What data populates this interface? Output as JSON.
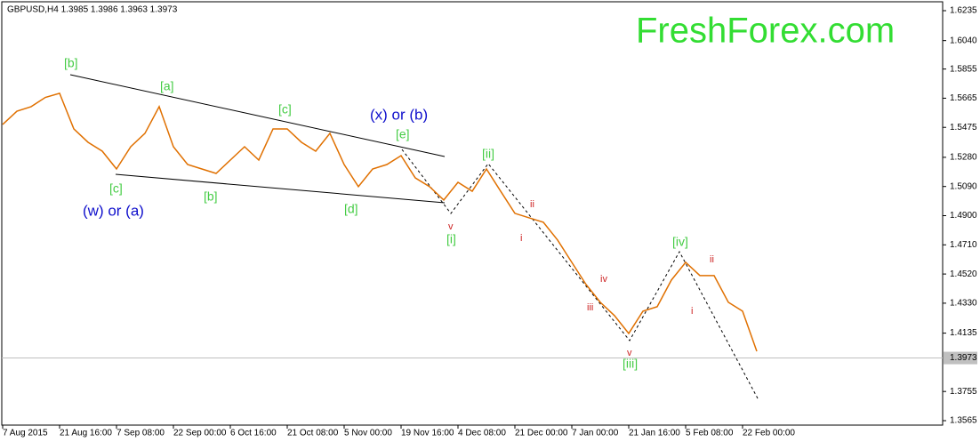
{
  "chart_data": {
    "type": "line",
    "title": "GBPUSD,H4  1.3985 1.3986 1.3963 1.3973",
    "watermark": "FreshForex.com",
    "categories": [
      "7 Aug 2015",
      null,
      null,
      null,
      "21 Aug 16:00",
      null,
      null,
      null,
      "7 Sep 08:00",
      null,
      null,
      null,
      "22 Sep 00:00",
      null,
      null,
      null,
      "6 Oct 16:00",
      null,
      null,
      null,
      "21 Oct 08:00",
      null,
      null,
      null,
      "5 Nov 00:00",
      null,
      null,
      null,
      "19 Nov 16:00",
      null,
      null,
      null,
      "4 Dec 08:00",
      null,
      null,
      null,
      "21 Dec 00:00",
      null,
      null,
      null,
      "7 Jan 00:00",
      null,
      null,
      null,
      "21 Jan 16:00",
      null,
      null,
      null,
      "5 Feb 08:00",
      null,
      null,
      null,
      "22 Feb 00:00",
      null
    ],
    "series": [
      {
        "name": "GBPUSD",
        "color": "#e07000",
        "values": [
          1.5494,
          1.558,
          1.561,
          1.567,
          1.5697,
          1.5465,
          1.5378,
          1.532,
          1.5204,
          1.5349,
          1.5436,
          1.561,
          1.5349,
          1.5233,
          1.5204,
          1.5175,
          1.5262,
          1.5349,
          1.5262,
          1.5465,
          1.5465,
          1.5378,
          1.532,
          1.5436,
          1.5233,
          1.5089,
          1.5204,
          1.5233,
          1.5291,
          1.5146,
          1.5089,
          1.5002,
          1.5117,
          1.5059,
          1.5204,
          1.5059,
          1.4915,
          1.4886,
          1.4857,
          1.4741,
          1.4596,
          1.4452,
          1.4336,
          1.4249,
          1.4133,
          1.4278,
          1.4307,
          1.4481,
          1.4596,
          1.451,
          1.451,
          1.4336,
          1.4278,
          1.4017
        ]
      }
    ],
    "ylim": [
      1.3565,
      1.6235
    ],
    "yticks": [
      1.6235,
      {
        "value": 1.604,
        "label": "1.6040"
      },
      1.5855,
      1.5665,
      1.5475,
      {
        "value": 1.528,
        "label": "1.5280"
      },
      {
        "value": 1.509,
        "label": "1.5090"
      },
      {
        "value": 1.49,
        "label": "1.4900"
      },
      {
        "value": 1.471,
        "label": "1.4710"
      },
      {
        "value": 1.452,
        "label": "1.4520"
      },
      {
        "value": 1.433,
        "label": "1.4330"
      },
      1.4135,
      1.3755,
      1.3565
    ],
    "current_price": {
      "value": 1.3973,
      "label": "1.3973"
    },
    "annotations": [
      {
        "text": "[b]",
        "color": "#44cc44"
      },
      {
        "text": "[a]",
        "color": "#44cc44"
      },
      {
        "text": "[c]",
        "color": "#44cc44"
      },
      {
        "text": "(x) or (b)",
        "color": "#1010cc"
      },
      {
        "text": "[e]",
        "color": "#44cc44"
      },
      {
        "text": "[c]",
        "color": "#44cc44"
      },
      {
        "text": "[b]",
        "color": "#44cc44"
      },
      {
        "text": "(w) or (a)",
        "color": "#1010cc"
      },
      {
        "text": "[d]",
        "color": "#44cc44"
      },
      {
        "text": "[ii]",
        "color": "#44cc44"
      },
      {
        "text": "v",
        "color": "#cc2222"
      },
      {
        "text": "[i]",
        "color": "#44cc44"
      },
      {
        "text": "ii",
        "color": "#cc2222"
      },
      {
        "text": "i",
        "color": "#cc2222"
      },
      {
        "text": "iv",
        "color": "#cc2222"
      },
      {
        "text": "iii",
        "color": "#cc2222"
      },
      {
        "text": "v",
        "color": "#cc2222"
      },
      {
        "text": "[iii]",
        "color": "#44cc44"
      },
      {
        "text": "[iv]",
        "color": "#44cc44"
      },
      {
        "text": "ii",
        "color": "#cc2222"
      },
      {
        "text": "i",
        "color": "#cc2222"
      }
    ]
  }
}
